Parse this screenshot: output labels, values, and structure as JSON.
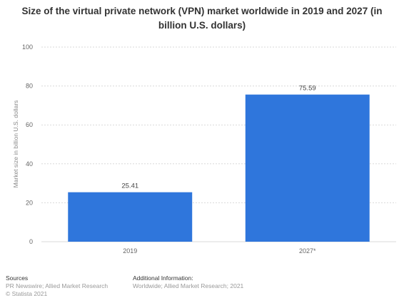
{
  "chart_data": {
    "type": "bar",
    "title": "Size of the virtual private network (VPN) market worldwide in 2019 and 2027 (in billion U.S. dollars)",
    "categories": [
      "2019",
      "2027*"
    ],
    "values": [
      25.41,
      75.59
    ],
    "value_labels": [
      "25.41",
      "75.59"
    ],
    "xlabel": "",
    "ylabel": "Market size in billion U.S. dollars",
    "ylim": [
      0,
      100
    ],
    "yticks": [
      0,
      20,
      40,
      60,
      80,
      100
    ],
    "grid": true,
    "bar_color": "#2f76dc"
  },
  "footer": {
    "sources_heading": "Sources",
    "sources_text": "PR Newswire; Allied Market Research",
    "copyright": "© Statista 2021",
    "additional_heading": "Additional Information:",
    "additional_text": "Worldwide; Allied Market Research; 2021"
  }
}
